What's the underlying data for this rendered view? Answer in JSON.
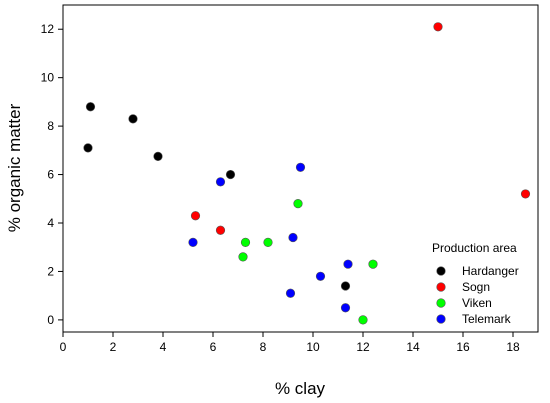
{
  "chart_data": {
    "type": "scatter",
    "xlabel": "% clay",
    "ylabel": "% organic matter",
    "xlim": [
      0,
      19
    ],
    "ylim": [
      -0.5,
      13
    ],
    "xticks": [
      0,
      2,
      4,
      6,
      8,
      10,
      12,
      14,
      16,
      18
    ],
    "yticks": [
      0,
      2,
      4,
      6,
      8,
      10,
      12
    ],
    "grid": false,
    "legend": {
      "title": "Production area",
      "placement": "bottom-right"
    },
    "series": [
      {
        "name": "Hardanger",
        "color": "#000000",
        "points": [
          {
            "x": 1.1,
            "y": 8.8
          },
          {
            "x": 1.0,
            "y": 7.1
          },
          {
            "x": 2.8,
            "y": 8.3
          },
          {
            "x": 3.8,
            "y": 6.75
          },
          {
            "x": 6.7,
            "y": 6.0
          },
          {
            "x": 11.3,
            "y": 1.4
          }
        ]
      },
      {
        "name": "Sogn",
        "color": "#ff0000",
        "points": [
          {
            "x": 15.0,
            "y": 12.1
          },
          {
            "x": 18.5,
            "y": 5.2
          },
          {
            "x": 5.3,
            "y": 4.3
          },
          {
            "x": 6.3,
            "y": 3.7
          }
        ]
      },
      {
        "name": "Viken",
        "color": "#00ff00",
        "points": [
          {
            "x": 9.4,
            "y": 4.8
          },
          {
            "x": 7.3,
            "y": 3.2
          },
          {
            "x": 8.2,
            "y": 3.2
          },
          {
            "x": 7.2,
            "y": 2.6
          },
          {
            "x": 12.4,
            "y": 2.3
          },
          {
            "x": 12.0,
            "y": 0.0
          }
        ]
      },
      {
        "name": "Telemark",
        "color": "#0000ff",
        "points": [
          {
            "x": 9.5,
            "y": 6.3
          },
          {
            "x": 6.3,
            "y": 5.7
          },
          {
            "x": 5.2,
            "y": 3.2
          },
          {
            "x": 9.2,
            "y": 3.4
          },
          {
            "x": 11.4,
            "y": 2.3
          },
          {
            "x": 10.3,
            "y": 1.8
          },
          {
            "x": 9.1,
            "y": 1.1
          },
          {
            "x": 11.3,
            "y": 0.5
          }
        ]
      }
    ]
  }
}
